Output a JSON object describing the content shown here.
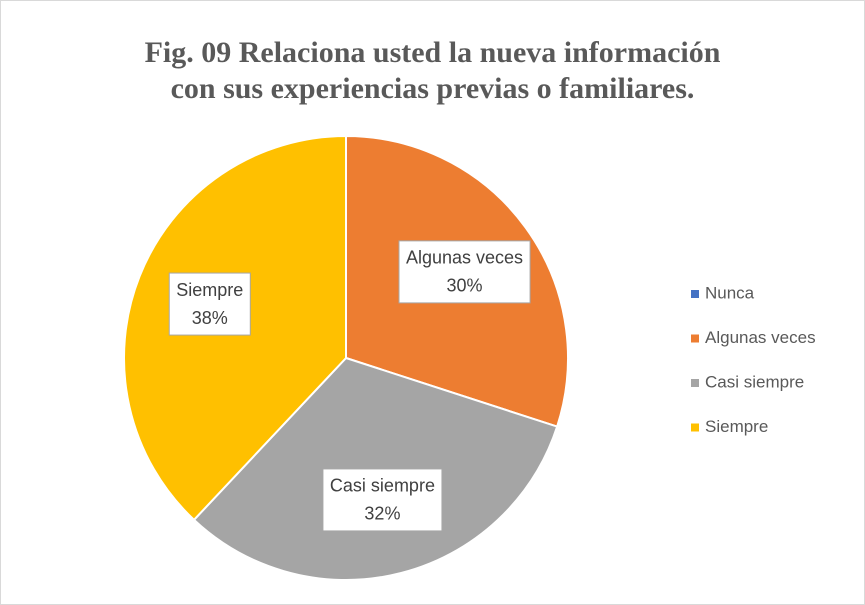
{
  "chart_data": {
    "type": "pie",
    "title": "Fig. 09 Relaciona usted la nueva información con sus experiencias previas o familiares.",
    "categories": [
      "Nunca",
      "Algunas veces",
      "Casi siempre",
      "Siempre"
    ],
    "values": [
      0,
      30,
      32,
      38
    ],
    "value_labels": [
      null,
      "30%",
      "32%",
      "38%"
    ],
    "colors": [
      "#4472c4",
      "#ed7d31",
      "#a5a5a5",
      "#ffc000"
    ],
    "legend": "right"
  }
}
